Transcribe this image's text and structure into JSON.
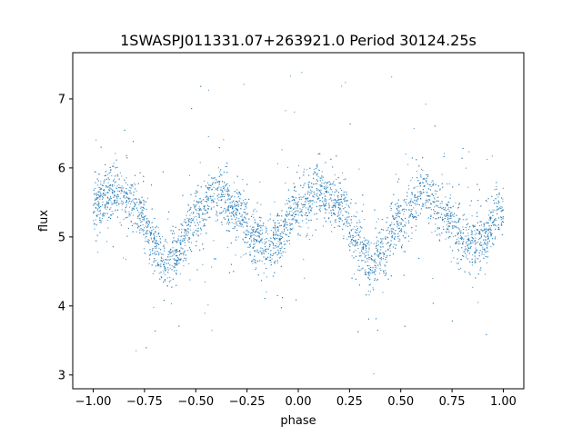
{
  "chart_data": {
    "type": "scatter",
    "title": "1SWASPJ011331.07+263921.0 Period 30124.25s",
    "xlabel": "phase",
    "ylabel": "flux",
    "xlim": [
      -1.1,
      1.1
    ],
    "ylim": [
      2.8,
      7.67
    ],
    "x_ticks": [
      -1.0,
      -0.75,
      -0.5,
      -0.25,
      0.0,
      0.25,
      0.5,
      0.75,
      1.0
    ],
    "x_tick_labels": [
      "−1.00",
      "−0.75",
      "−0.50",
      "−0.25",
      "0.00",
      "0.25",
      "0.50",
      "0.75",
      "1.00"
    ],
    "y_ticks": [
      3,
      4,
      5,
      6,
      7
    ],
    "y_tick_labels": [
      "3",
      "4",
      "5",
      "6",
      "7"
    ],
    "grid": false,
    "marker_color": "#1f77b4",
    "series": [
      {
        "x": [
          -1.0,
          -0.9,
          -0.8,
          -0.7,
          -0.65,
          -0.6,
          -0.5,
          -0.4,
          -0.3,
          -0.2,
          -0.15,
          -0.1,
          0.0,
          0.1,
          0.2,
          0.3,
          0.35,
          0.4,
          0.5,
          0.6,
          0.7,
          0.8,
          0.85,
          0.9,
          1.0
        ],
        "y": [
          5.45,
          5.65,
          5.45,
          4.9,
          4.6,
          4.75,
          5.25,
          5.65,
          5.35,
          4.95,
          4.8,
          5.0,
          5.45,
          5.65,
          5.45,
          4.9,
          4.6,
          4.75,
          5.25,
          5.65,
          5.35,
          4.95,
          4.8,
          5.0,
          5.45
        ]
      }
    ]
  }
}
